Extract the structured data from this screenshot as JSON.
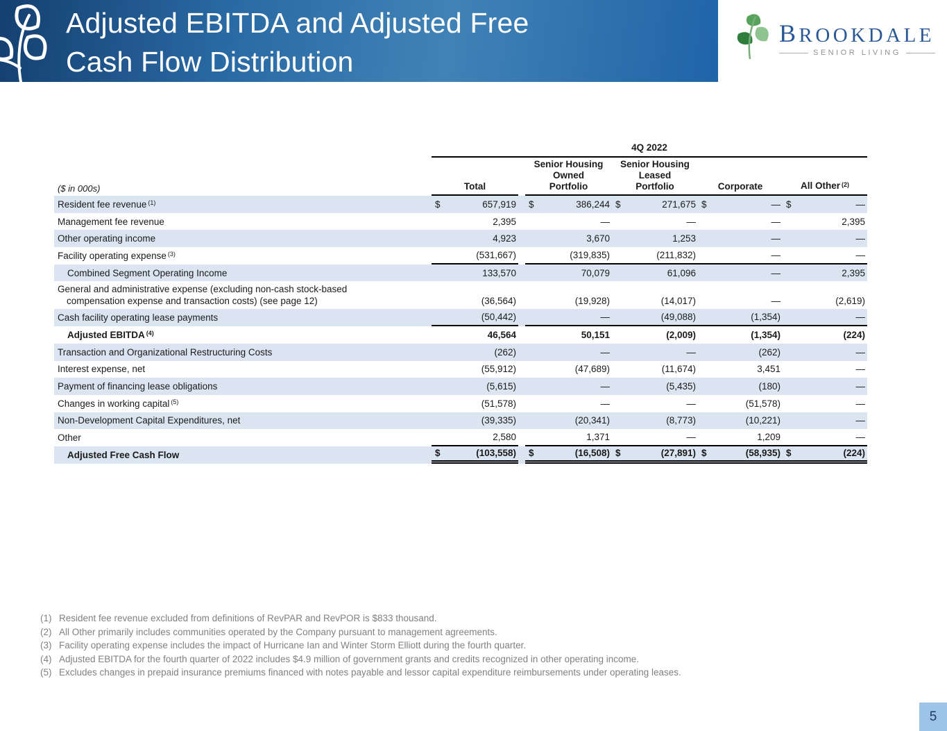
{
  "header": {
    "title_line1": "Adjusted EBITDA and Adjusted Free",
    "title_line2": "Cash Flow Distribution"
  },
  "logo": {
    "name": "Brookdale",
    "tagline": "SENIOR LIVING"
  },
  "table": {
    "units_label": "($ in 000s)",
    "period": "4Q 2022",
    "columns": [
      {
        "lines": [
          "Total"
        ],
        "sup": ""
      },
      {
        "lines": [
          "Senior Housing",
          "Owned",
          "Portfolio"
        ],
        "sup": ""
      },
      {
        "lines": [
          "Senior Housing",
          "Leased",
          "Portfolio"
        ],
        "sup": ""
      },
      {
        "lines": [
          "Corporate"
        ],
        "sup": ""
      },
      {
        "lines": [
          "All Other"
        ],
        "sup": "(2)"
      }
    ],
    "rows": [
      {
        "label": "Resident fee revenue",
        "sup": "(1)",
        "style": "normal",
        "dollar": true,
        "rule": "",
        "values": [
          "657,919",
          "386,244",
          "271,675",
          "—",
          "—"
        ]
      },
      {
        "label": "Management fee revenue",
        "sup": "",
        "style": "normal",
        "dollar": false,
        "rule": "",
        "values": [
          "2,395",
          "—",
          "—",
          "—",
          "2,395"
        ]
      },
      {
        "label": "Other operating income",
        "sup": "",
        "style": "normal",
        "dollar": false,
        "rule": "",
        "values": [
          "4,923",
          "3,670",
          "1,253",
          "—",
          "—"
        ]
      },
      {
        "label": "Facility operating expense",
        "sup": "(3)",
        "style": "normal",
        "dollar": false,
        "rule": "single",
        "values": [
          "(531,667)",
          "(319,835)",
          "(211,832)",
          "—",
          "—"
        ]
      },
      {
        "label": "Combined Segment Operating Income",
        "sup": "",
        "style": "subtotal",
        "dollar": false,
        "rule": "",
        "values": [
          "133,570",
          "70,079",
          "61,096",
          "—",
          "2,395"
        ]
      },
      {
        "label": "General and administrative expense (excluding non-cash stock-based",
        "label2": "compensation expense and transaction costs) (see page 12)",
        "sup": "",
        "style": "normal",
        "dollar": false,
        "rule": "",
        "values": [
          "(36,564)",
          "(19,928)",
          "(14,017)",
          "—",
          "(2,619)"
        ]
      },
      {
        "label": "Cash facility operating lease payments",
        "sup": "",
        "style": "normal",
        "dollar": false,
        "rule": "single",
        "values": [
          "(50,442)",
          "—",
          "(49,088)",
          "(1,354)",
          "—"
        ]
      },
      {
        "label": "Adjusted EBITDA",
        "sup": "(4)",
        "style": "total",
        "dollar": false,
        "rule": "",
        "values": [
          "46,564",
          "50,151",
          "(2,009)",
          "(1,354)",
          "(224)"
        ]
      },
      {
        "label": "Transaction and Organizational Restructuring Costs",
        "sup": "",
        "style": "normal",
        "dollar": false,
        "rule": "",
        "values": [
          "(262)",
          "—",
          "—",
          "(262)",
          "—"
        ]
      },
      {
        "label": "Interest expense, net",
        "sup": "",
        "style": "normal",
        "dollar": false,
        "rule": "",
        "values": [
          "(55,912)",
          "(47,689)",
          "(11,674)",
          "3,451",
          "—"
        ]
      },
      {
        "label": "Payment of financing lease obligations",
        "sup": "",
        "style": "normal",
        "dollar": false,
        "rule": "",
        "values": [
          "(5,615)",
          "—",
          "(5,435)",
          "(180)",
          "—"
        ]
      },
      {
        "label": "Changes in working capital",
        "sup": "(5)",
        "style": "normal",
        "dollar": false,
        "rule": "",
        "values": [
          "(51,578)",
          "—",
          "—",
          "(51,578)",
          "—"
        ]
      },
      {
        "label": "Non-Development Capital Expenditures, net",
        "sup": "",
        "style": "normal",
        "dollar": false,
        "rule": "",
        "values": [
          "(39,335)",
          "(20,341)",
          "(8,773)",
          "(10,221)",
          "—"
        ]
      },
      {
        "label": "Other",
        "sup": "",
        "style": "normal",
        "dollar": false,
        "rule": "single",
        "values": [
          "2,580",
          "1,371",
          "—",
          "1,209",
          "—"
        ]
      },
      {
        "label": "Adjusted Free Cash Flow",
        "sup": "",
        "style": "total",
        "dollar": true,
        "rule": "double",
        "values": [
          "(103,558)",
          "(16,508)",
          "(27,891)",
          "(58,935)",
          "(224)"
        ]
      }
    ]
  },
  "footnotes": [
    {
      "num": "(1)",
      "text": "Resident fee revenue excluded from definitions of RevPAR and RevPOR is $833 thousand."
    },
    {
      "num": "(2)",
      "text": "All Other primarily includes communities operated by the Company pursuant to management agreements."
    },
    {
      "num": "(3)",
      "text": "Facility operating expense includes the impact of Hurricane Ian and Winter Storm Elliott during the fourth quarter."
    },
    {
      "num": "(4)",
      "text": "Adjusted EBITDA for the fourth quarter of 2022 includes $4.9 million of government grants and credits recognized in other operating income."
    },
    {
      "num": "(5)",
      "text": "Excludes changes in prepaid insurance premiums financed with notes payable and lessor capital expenditure reimbursements under operating leases."
    }
  ],
  "page": {
    "number": "5"
  },
  "colors": {
    "banner_blue": "#1f64a8",
    "row_shade": "#dbe5f1",
    "page_box_blue": "#9dc3e6",
    "logo_blue": "#2a5897",
    "leaf_green": "#4a9e4f",
    "footnote_gray": "#818181"
  }
}
